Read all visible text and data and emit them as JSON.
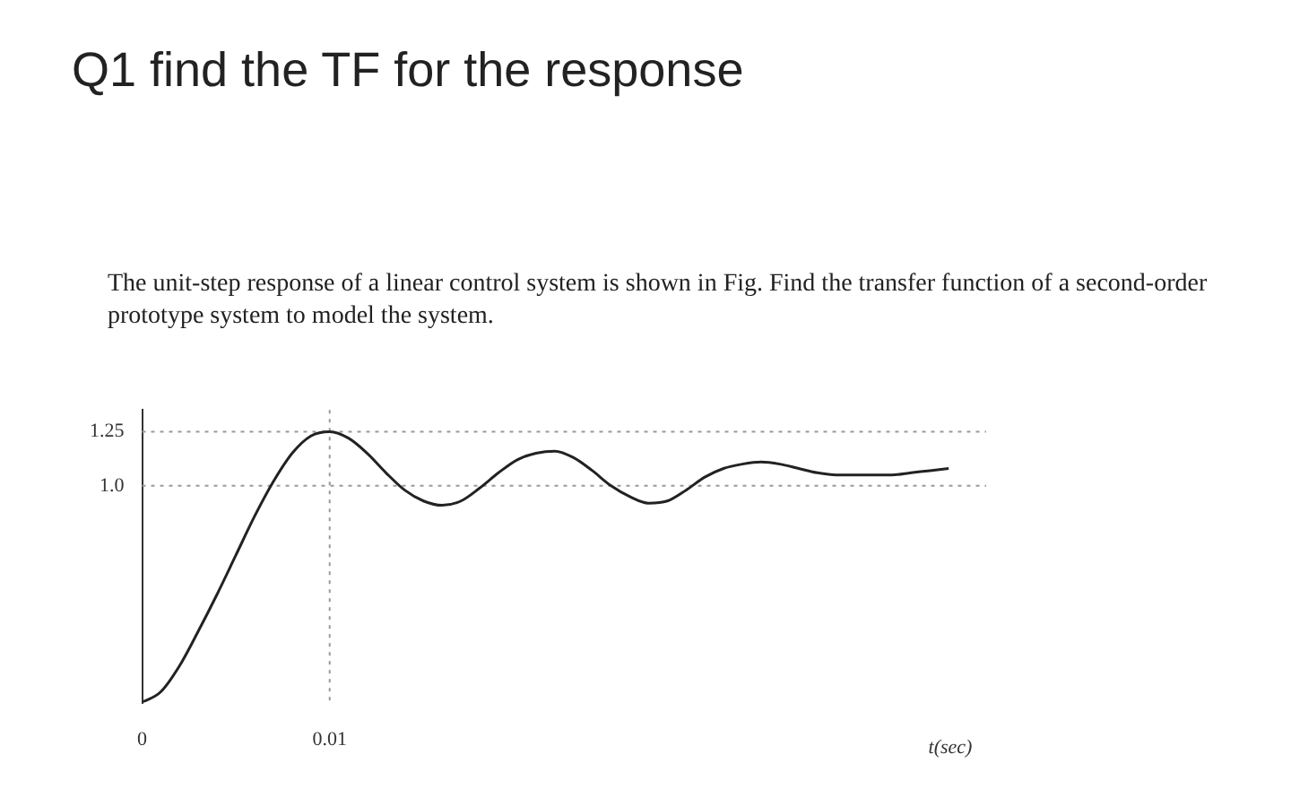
{
  "chart_data": {
    "type": "line",
    "title": "Q1 find the TF for the response",
    "subtitle": "The unit-step response of a linear control system is shown in Fig. Find the transfer function of a second-order prototype system to model the system.",
    "xlabel": "t(sec)",
    "x": [
      0,
      0.001,
      0.002,
      0.003,
      0.004,
      0.005,
      0.006,
      0.007,
      0.008,
      0.009,
      0.01,
      0.011,
      0.012,
      0.013,
      0.014,
      0.015,
      0.016,
      0.017,
      0.018,
      0.019,
      0.02,
      0.021,
      0.022,
      0.023,
      0.024,
      0.025,
      0.026,
      0.027,
      0.028,
      0.029,
      0.03,
      0.031,
      0.032,
      0.033,
      0.034,
      0.035,
      0.036,
      0.037,
      0.038,
      0.039,
      0.04,
      0.041,
      0.042,
      0.043
    ],
    "values": [
      0,
      0.05,
      0.17,
      0.33,
      0.5,
      0.68,
      0.86,
      1.02,
      1.15,
      1.23,
      1.25,
      1.22,
      1.15,
      1.06,
      0.98,
      0.93,
      0.91,
      0.93,
      0.99,
      1.06,
      1.12,
      1.15,
      1.16,
      1.13,
      1.07,
      1.0,
      0.95,
      0.92,
      0.93,
      0.98,
      1.04,
      1.08,
      1.1,
      1.11,
      1.1,
      1.08,
      1.06,
      1.05,
      1.05,
      1.05,
      1.05,
      1.06,
      1.07,
      1.08
    ],
    "color": "#222222",
    "xlim": [
      0,
      0.045
    ],
    "ylim": [
      0,
      1.35
    ],
    "xticks": [
      {
        "value": 0,
        "label": "0"
      },
      {
        "value": 0.01,
        "label": "0.01"
      }
    ],
    "yticks": [
      {
        "value": 1,
        "label": "1.0"
      },
      {
        "value": 1.25,
        "label": "1.25"
      }
    ],
    "ref_lines": [
      {
        "axis": "y",
        "value": 1,
        "color": "#999999",
        "line_style": "dotted"
      },
      {
        "axis": "y",
        "value": 1.25,
        "color": "#999999",
        "line_style": "dotted"
      },
      {
        "axis": "x",
        "value": 0.01,
        "color": "#999999",
        "line_style": "dotted"
      }
    ],
    "grid": false,
    "legend": false,
    "marker": "none",
    "line_style": "solid"
  }
}
